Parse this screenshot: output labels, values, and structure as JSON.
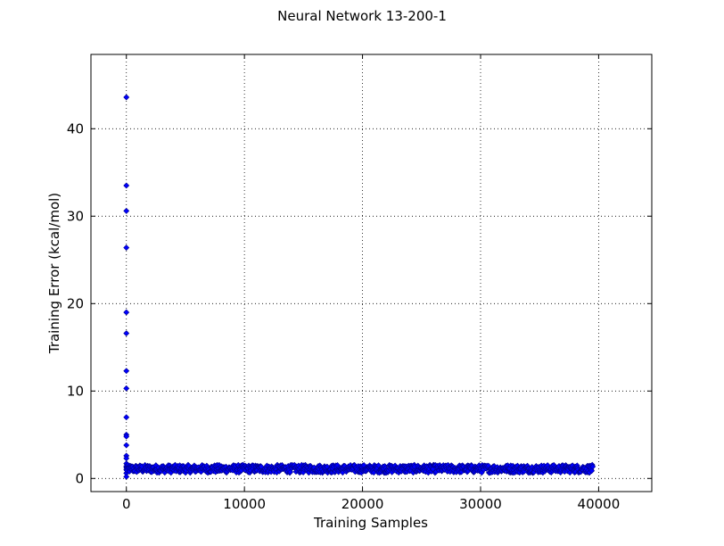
{
  "chart_data": {
    "type": "scatter",
    "title": "Neural Network 13-200-1",
    "xlabel": "Training Samples",
    "ylabel": "Training Error (kcal/mol)",
    "xlim": [
      -3000,
      44500
    ],
    "ylim": [
      -1.5,
      48.5
    ],
    "xticks": [
      0,
      10000,
      20000,
      30000,
      40000
    ],
    "yticks": [
      0,
      10,
      20,
      30,
      40
    ],
    "grid": true,
    "marker": "diamond",
    "series": [
      {
        "color": "#0000ff",
        "points": [
          [
            0,
            43.6
          ],
          [
            0,
            33.5
          ],
          [
            0,
            30.6
          ],
          [
            0,
            26.4
          ],
          [
            0,
            19.0
          ],
          [
            0,
            16.6
          ],
          [
            0,
            12.3
          ],
          [
            0,
            10.3
          ],
          [
            0,
            7.0
          ],
          [
            0,
            5.0
          ],
          [
            0,
            4.8
          ],
          [
            0,
            3.8
          ],
          [
            0,
            2.6
          ],
          [
            0,
            2.3
          ],
          [
            0,
            1.7
          ],
          [
            0,
            1.4
          ],
          [
            0,
            1.0
          ],
          [
            0,
            0.6
          ],
          [
            0,
            0.2
          ]
        ],
        "band": {
          "x_range": [
            0,
            39500
          ],
          "y_mean": 1.1,
          "y_spread": 0.45
        }
      }
    ]
  }
}
